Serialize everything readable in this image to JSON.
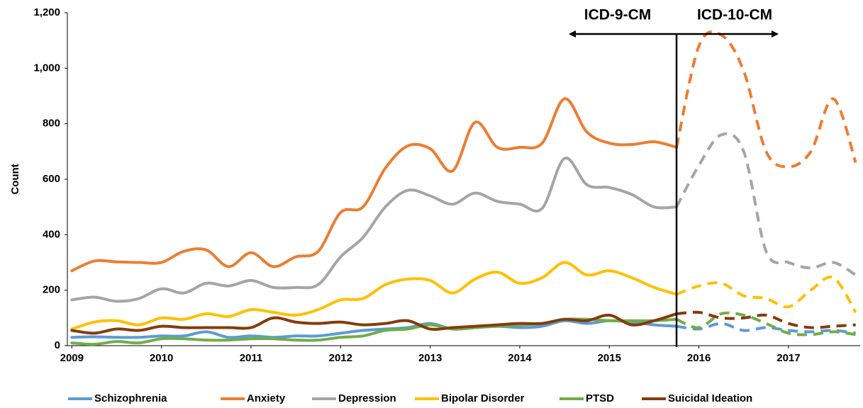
{
  "chart_data": {
    "type": "line",
    "y_label": "Count",
    "x": [
      2009,
      2009.25,
      2009.5,
      2009.75,
      2010,
      2010.25,
      2010.5,
      2010.75,
      2011,
      2011.25,
      2011.5,
      2011.75,
      2012,
      2012.25,
      2012.5,
      2012.75,
      2013,
      2013.25,
      2013.5,
      2013.75,
      2014,
      2014.25,
      2014.5,
      2014.75,
      2015,
      2015.25,
      2015.5,
      2015.75,
      2016,
      2016.25,
      2016.5,
      2016.75,
      2017,
      2017.25,
      2017.5,
      2017.75
    ],
    "series": [
      {
        "name": "Schizophrenia",
        "color": "#5b9bd5",
        "values": [
          30,
          32,
          30,
          30,
          35,
          35,
          50,
          30,
          35,
          30,
          35,
          35,
          45,
          55,
          60,
          65,
          80,
          60,
          65,
          70,
          65,
          70,
          90,
          80,
          90,
          85,
          75,
          70,
          60,
          80,
          55,
          65,
          55,
          50,
          55,
          45
        ]
      },
      {
        "name": "Anxiety",
        "color": "#ed7d31",
        "values": [
          270,
          305,
          302,
          300,
          300,
          340,
          345,
          285,
          335,
          285,
          320,
          340,
          480,
          500,
          640,
          720,
          710,
          630,
          805,
          715,
          715,
          730,
          890,
          770,
          730,
          725,
          735,
          715,
          1080,
          1120,
          990,
          700,
          645,
          700,
          890,
          660
        ]
      },
      {
        "name": "Depression",
        "color": "#a5a5a5",
        "values": [
          165,
          175,
          160,
          170,
          205,
          190,
          225,
          215,
          235,
          210,
          210,
          220,
          320,
          390,
          500,
          560,
          540,
          510,
          550,
          520,
          510,
          495,
          675,
          580,
          570,
          545,
          500,
          500,
          650,
          760,
          700,
          340,
          300,
          280,
          300,
          255
        ]
      },
      {
        "name": "Bipolar Disorder",
        "color": "#ffc000",
        "values": [
          60,
          85,
          90,
          75,
          100,
          95,
          115,
          105,
          130,
          120,
          110,
          130,
          165,
          170,
          220,
          240,
          235,
          190,
          240,
          265,
          225,
          245,
          300,
          255,
          270,
          245,
          210,
          185,
          215,
          225,
          180,
          170,
          140,
          200,
          245,
          120
        ]
      },
      {
        "name": "PTSD",
        "color": "#70ad47",
        "values": [
          10,
          5,
          15,
          10,
          25,
          25,
          20,
          20,
          25,
          25,
          20,
          20,
          30,
          35,
          55,
          60,
          75,
          60,
          65,
          70,
          75,
          80,
          95,
          95,
          90,
          90,
          90,
          95,
          65,
          115,
          110,
          80,
          45,
          40,
          50,
          40
        ]
      },
      {
        "name": "Suicidal Ideation",
        "color": "#843c0c",
        "values": [
          55,
          45,
          60,
          55,
          70,
          65,
          65,
          65,
          65,
          100,
          85,
          80,
          85,
          75,
          80,
          90,
          60,
          65,
          70,
          75,
          80,
          80,
          95,
          90,
          110,
          75,
          90,
          115,
          120,
          100,
          100,
          110,
          80,
          65,
          70,
          75
        ]
      }
    ],
    "xlim": [
      2008.95,
      2017.8
    ],
    "xticks": [
      2009,
      2010,
      2011,
      2012,
      2013,
      2014,
      2015,
      2016,
      2017
    ],
    "ylim": [
      0,
      1200
    ],
    "yticks": [
      0,
      200,
      400,
      600,
      800,
      {
        "value": 1000,
        "label": "1,000"
      },
      {
        "value": 1200,
        "label": "1,200"
      }
    ],
    "annotation": {
      "x": 2015.75,
      "left_label": "ICD-9-CM",
      "right_label": "ICD-10-CM"
    },
    "dashed_after_annotation": true,
    "legend": "bottom"
  }
}
